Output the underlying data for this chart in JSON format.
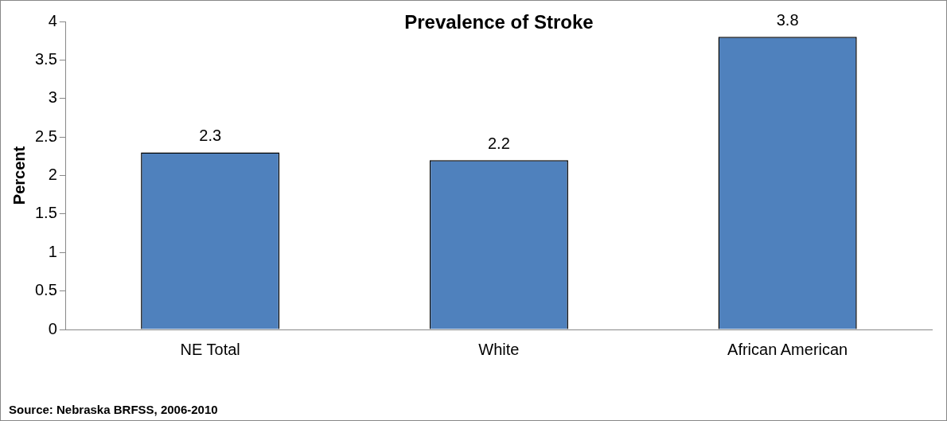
{
  "chart_data": {
    "type": "bar",
    "title": "Prevalence of Stroke",
    "ylabel": "Percent",
    "categories": [
      "NE Total",
      "White",
      "African American"
    ],
    "values": [
      2.3,
      2.2,
      3.8
    ],
    "color": "#4f81bd",
    "ylim": [
      0,
      4
    ],
    "yticks": [
      0,
      0.5,
      1,
      1.5,
      2,
      2.5,
      3,
      3.5,
      4
    ],
    "grid": false,
    "legend": false,
    "data_labels": true,
    "annotations": [
      "Source: Nebraska BRFSS, 2006-2010"
    ]
  }
}
